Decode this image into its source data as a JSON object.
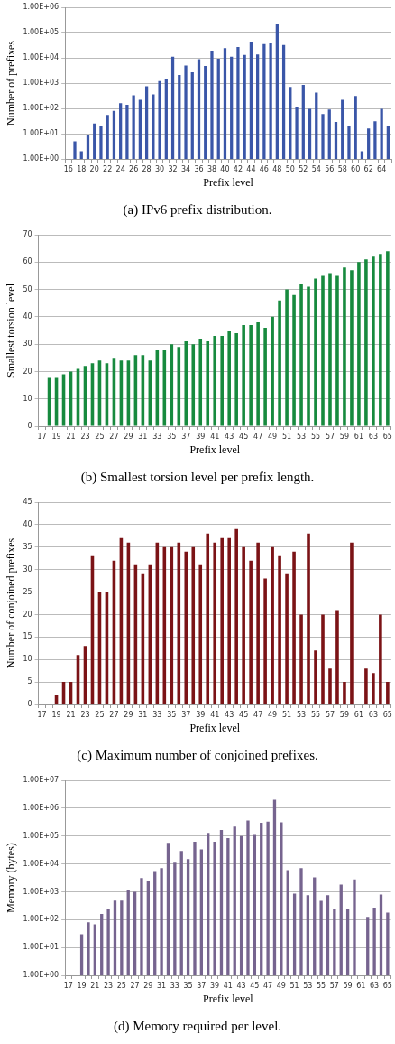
{
  "chart_data": [
    {
      "type": "bar",
      "title": "(a) IPv6 prefix distribution.",
      "xlabel": "Prefix level",
      "ylabel": "Number of prefixes",
      "log": "y",
      "grid": "y",
      "legend": false,
      "categories": [
        "16",
        null,
        "18",
        null,
        "20",
        null,
        "22",
        null,
        "24",
        null,
        "26",
        null,
        "28",
        null,
        "30",
        null,
        "32",
        null,
        "34",
        null,
        "36",
        null,
        "38",
        null,
        "40",
        null,
        "42",
        null,
        "44",
        null,
        "46",
        null,
        "48",
        null,
        "50",
        null,
        "52",
        null,
        "54",
        null,
        "56",
        null,
        "58",
        null,
        "60",
        null,
        "62",
        null,
        "64",
        null
      ],
      "values": [
        null,
        5,
        2,
        9,
        25,
        20,
        55,
        80,
        160,
        140,
        330,
        220,
        750,
        360,
        1200,
        1450,
        11000,
        2100,
        5000,
        2700,
        8800,
        4800,
        19000,
        9200,
        24000,
        11000,
        27000,
        13000,
        42000,
        13500,
        35000,
        37000,
        210000,
        32000,
        700,
        110,
        850,
        95,
        420,
        60,
        90,
        29,
        220,
        21,
        310,
        2,
        16,
        31,
        95,
        21
      ],
      "color": "#3a56a8",
      "ylim": [
        1,
        1000000
      ],
      "yticks": [
        {
          "value": 1,
          "label": "1.00E+00"
        },
        {
          "value": 10,
          "label": "1.00E+01"
        },
        {
          "value": 100,
          "label": "1.00E+02"
        },
        {
          "value": 1000,
          "label": "1.00E+03"
        },
        {
          "value": 10000,
          "label": "1.00E+04"
        },
        {
          "value": 100000,
          "label": "1.00E+05"
        },
        {
          "value": 1000000,
          "label": "1.00E+06"
        }
      ]
    },
    {
      "type": "bar",
      "title": "(b) Smallest torsion level per prefix length.",
      "xlabel": "Prefix level",
      "ylabel": "Smallest torsion level",
      "grid": "y",
      "legend": false,
      "categories": [
        "17",
        null,
        "19",
        null,
        "21",
        null,
        "23",
        null,
        "25",
        null,
        "27",
        null,
        "29",
        null,
        "31",
        null,
        "33",
        null,
        "35",
        null,
        "37",
        null,
        "39",
        null,
        "41",
        null,
        "43",
        null,
        "45",
        null,
        "47",
        null,
        "49",
        null,
        "51",
        null,
        "53",
        null,
        "55",
        null,
        "57",
        null,
        "59",
        null,
        "61",
        null,
        "63",
        null,
        "65"
      ],
      "values": [
        null,
        18,
        18,
        19,
        20,
        21,
        22,
        23,
        24,
        23,
        25,
        24,
        24,
        26,
        26,
        24,
        28,
        28,
        30,
        29,
        31,
        30,
        32,
        31,
        33,
        33,
        35,
        34,
        37,
        37,
        38,
        36,
        40,
        46,
        50,
        48,
        52,
        51,
        54,
        55,
        56,
        55,
        58,
        57,
        60,
        61,
        62,
        63,
        64
      ],
      "color": "#178a3e",
      "ylim": [
        0,
        70
      ],
      "yticks": [
        0,
        10,
        20,
        30,
        40,
        50,
        60,
        70
      ]
    },
    {
      "type": "bar",
      "title": "(c) Maximum number of conjoined prefixes.",
      "xlabel": "Prefix level",
      "ylabel": "Number of conjoined prefixes",
      "grid": "y",
      "legend": false,
      "categories": [
        "17",
        null,
        "19",
        null,
        "21",
        null,
        "23",
        null,
        "25",
        null,
        "27",
        null,
        "29",
        null,
        "31",
        null,
        "33",
        null,
        "35",
        null,
        "37",
        null,
        "39",
        null,
        "41",
        null,
        "43",
        null,
        "45",
        null,
        "47",
        null,
        "49",
        null,
        "51",
        null,
        "53",
        null,
        "55",
        null,
        "57",
        null,
        "59",
        null,
        "61",
        null,
        "63",
        null,
        "65"
      ],
      "values": [
        null,
        null,
        2,
        5,
        5,
        11,
        13,
        33,
        25,
        25,
        32,
        37,
        36,
        31,
        29,
        31,
        36,
        35,
        35,
        36,
        34,
        35,
        31,
        38,
        36,
        37,
        37,
        39,
        35,
        32,
        36,
        28,
        35,
        33,
        29,
        34,
        20,
        38,
        12,
        20,
        8,
        21,
        5,
        36,
        null,
        8,
        7,
        20,
        5
      ],
      "color": "#7b1316",
      "ylim": [
        0,
        45
      ],
      "yticks": [
        0,
        5,
        10,
        15,
        20,
        25,
        30,
        35,
        40,
        45
      ]
    },
    {
      "type": "bar",
      "title": "(d) Memory required per level.",
      "xlabel": "Prefix level",
      "ylabel": "Memory (bytes)",
      "log": "y",
      "grid": "y",
      "legend": false,
      "categories": [
        "17",
        null,
        "19",
        null,
        "21",
        null,
        "23",
        null,
        "25",
        null,
        "27",
        null,
        "29",
        null,
        "31",
        null,
        "33",
        null,
        "35",
        null,
        "37",
        null,
        "39",
        null,
        "41",
        null,
        "43",
        null,
        "45",
        null,
        "47",
        null,
        "49",
        null,
        "51",
        null,
        "53",
        null,
        "55",
        null,
        "57",
        null,
        "59",
        null,
        "61",
        null,
        "63",
        null,
        "65"
      ],
      "values": [
        null,
        null,
        30,
        80,
        68,
        160,
        240,
        480,
        480,
        1200,
        1000,
        3100,
        2400,
        5500,
        7000,
        57000,
        11000,
        29000,
        15000,
        63000,
        33000,
        130000,
        63000,
        165000,
        85000,
        220000,
        100000,
        360000,
        110000,
        300000,
        330000,
        2000000,
        310000,
        6000,
        850,
        7000,
        750,
        3300,
        470,
        750,
        230,
        1800,
        230,
        2800,
        null,
        125,
        270,
        800,
        180
      ],
      "color": "#76648f",
      "ylim": [
        1,
        10000000
      ],
      "yticks": [
        {
          "value": 1,
          "label": "1.00E+00"
        },
        {
          "value": 10,
          "label": "1.00E+01"
        },
        {
          "value": 100,
          "label": "1.00E+02"
        },
        {
          "value": 1000,
          "label": "1.00E+03"
        },
        {
          "value": 10000,
          "label": "1.00E+04"
        },
        {
          "value": 100000,
          "label": "1.00E+05"
        },
        {
          "value": 1000000,
          "label": "1.00E+06"
        },
        {
          "value": 10000000,
          "label": "1.00E+07"
        }
      ]
    }
  ]
}
